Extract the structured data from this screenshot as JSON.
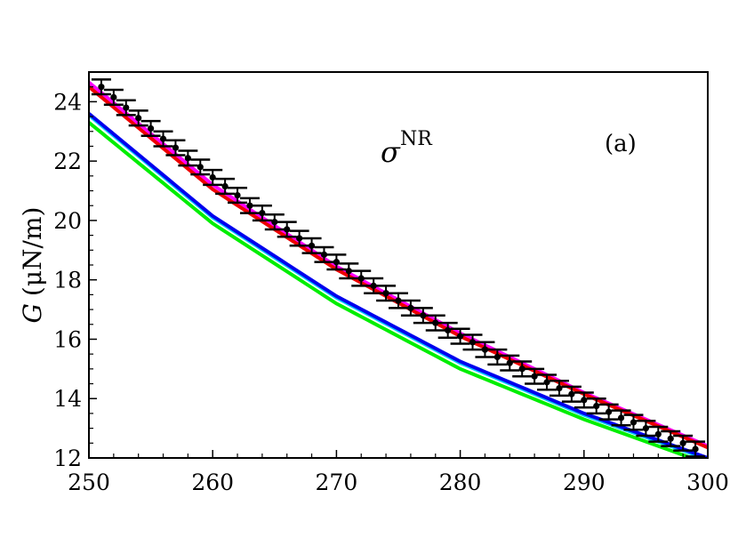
{
  "chart_data": {
    "type": "line",
    "title": "",
    "xlabel": "",
    "ylabel_symbol": "G",
    "ylabel_unit": "(μN/m)",
    "xlim": [
      250,
      300
    ],
    "ylim": [
      12,
      25
    ],
    "xticks": [
      250,
      260,
      270,
      280,
      290,
      300
    ],
    "yticks": [
      12,
      14,
      16,
      18,
      20,
      22,
      24
    ],
    "grid": false,
    "legend": "none",
    "annotations": {
      "sigma": "σ",
      "sigma_sup": "NR",
      "panel": "(a)"
    },
    "series": [
      {
        "color": "#00ee00",
        "x": [
          250,
          260,
          270,
          280,
          290,
          300
        ],
        "y": [
          23.3,
          19.9,
          17.2,
          15.0,
          13.3,
          11.8
        ]
      },
      {
        "color": "#00c8ff",
        "x": [
          250,
          260,
          270,
          280,
          290,
          300
        ],
        "y": [
          23.55,
          20.1,
          17.4,
          15.2,
          13.45,
          11.95
        ]
      },
      {
        "color": "#0000ee",
        "x": [
          250,
          260,
          270,
          280,
          290,
          300
        ],
        "y": [
          23.6,
          20.15,
          17.45,
          15.25,
          13.5,
          12.0
        ]
      },
      {
        "color": "#ff00ff",
        "x": [
          250,
          260,
          270,
          280,
          290,
          300
        ],
        "y": [
          24.65,
          21.2,
          18.45,
          16.2,
          14.2,
          12.4
        ]
      },
      {
        "color": "#ee0000",
        "x": [
          250,
          260,
          270,
          280,
          290,
          300
        ],
        "y": [
          24.5,
          21.05,
          18.35,
          16.1,
          14.15,
          12.35
        ]
      }
    ],
    "points": {
      "color": "#000000",
      "x": [
        251,
        252,
        253,
        254,
        255,
        256,
        257,
        258,
        259,
        260,
        261,
        262,
        263,
        264,
        265,
        266,
        267,
        268,
        269,
        270,
        271,
        272,
        273,
        274,
        275,
        276,
        277,
        278,
        279,
        280,
        281,
        282,
        283,
        284,
        285,
        286,
        287,
        288,
        289,
        290,
        291,
        292,
        293,
        294,
        295,
        296,
        297,
        298,
        299
      ],
      "y": [
        24.5,
        24.15,
        23.8,
        23.45,
        23.1,
        22.75,
        22.45,
        22.1,
        21.8,
        21.45,
        21.15,
        20.85,
        20.5,
        20.25,
        19.95,
        19.7,
        19.4,
        19.15,
        18.85,
        18.6,
        18.3,
        18.05,
        17.8,
        17.55,
        17.3,
        17.05,
        16.8,
        16.55,
        16.3,
        16.1,
        15.9,
        15.65,
        15.4,
        15.2,
        15.0,
        14.75,
        14.55,
        14.35,
        14.15,
        13.95,
        13.75,
        13.55,
        13.35,
        13.2,
        13.0,
        12.8,
        12.65,
        12.5,
        12.3
      ],
      "err": 0.25
    }
  }
}
